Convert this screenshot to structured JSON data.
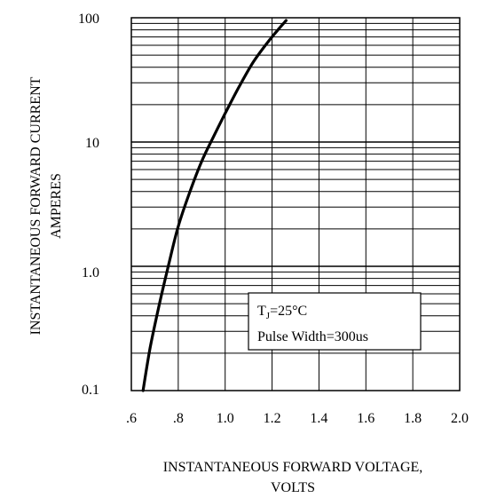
{
  "chart_data": {
    "type": "line",
    "title": "",
    "xlabel_lines": [
      "INSTANTANEOUS FORWARD VOLTAGE,",
      "VOLTS"
    ],
    "ylabel_lines": [
      "INSTANTANEOUS FORWARD CURRENT",
      "AMPERES"
    ],
    "x_scale": "linear",
    "y_scale": "log",
    "xlim": [
      0.6,
      2.0
    ],
    "ylim": [
      0.1,
      100
    ],
    "x_ticks": [
      0.6,
      0.8,
      1.0,
      1.2,
      1.4,
      1.6,
      1.8,
      2.0
    ],
    "x_tick_labels": [
      ".6",
      ".8",
      "1.0",
      "1.2",
      "1.4",
      "1.6",
      "1.8",
      "2.0"
    ],
    "y_ticks": [
      0.1,
      1.0,
      10,
      100
    ],
    "y_tick_labels": [
      "0.1",
      "1.0",
      "10",
      "100"
    ],
    "grid": true,
    "legend_position": "lower-right",
    "annotation": {
      "line1_main": "T",
      "line1_sub": "J",
      "line1_rest": "=25°C",
      "line2": "Pulse Width=300us"
    },
    "series": [
      {
        "color": "#000000",
        "x": [
          0.65,
          0.68,
          0.72,
          0.76,
          0.8,
          0.85,
          0.9,
          0.95,
          1.0,
          1.06,
          1.12,
          1.18,
          1.23,
          1.26
        ],
        "y": [
          0.1,
          0.22,
          0.5,
          1.05,
          2.1,
          4.0,
          7.0,
          11.0,
          17.0,
          28.0,
          44.0,
          63.0,
          82.0,
          95.0
        ]
      }
    ]
  }
}
